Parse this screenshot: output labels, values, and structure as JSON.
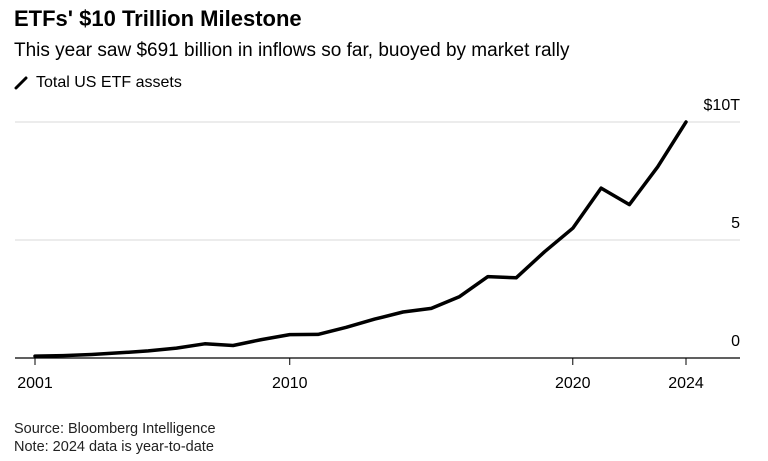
{
  "chart_data": {
    "type": "line",
    "title": "ETFs' $10 Trillion Milestone",
    "subtitle": "This year saw $691 billion in inflows so far, buoyed by market rally",
    "legend": [
      {
        "name": "Total US ETF assets",
        "color": "#000000"
      }
    ],
    "xlabel": "",
    "ylabel": "",
    "x": [
      2001,
      2002,
      2003,
      2004,
      2005,
      2006,
      2007,
      2008,
      2009,
      2010,
      2011,
      2012,
      2013,
      2014,
      2015,
      2016,
      2017,
      2018,
      2019,
      2020,
      2021,
      2022,
      2023,
      2024
    ],
    "series": [
      {
        "name": "Total US ETF assets",
        "values": [
          0.08,
          0.1,
          0.15,
          0.22,
          0.3,
          0.42,
          0.6,
          0.53,
          0.78,
          0.99,
          1.0,
          1.3,
          1.65,
          1.95,
          2.1,
          2.6,
          3.45,
          3.4,
          4.5,
          5.5,
          7.2,
          6.5,
          8.1,
          10.0
        ]
      }
    ],
    "xlim": [
      2001,
      2024
    ],
    "ylim": [
      0,
      10
    ],
    "x_ticks": [
      {
        "value": 2001,
        "label": "2001"
      },
      {
        "value": 2010,
        "label": "2010"
      },
      {
        "value": 2020,
        "label": "2020"
      },
      {
        "value": 2024,
        "label": "2024"
      }
    ],
    "y_ticks": [
      {
        "value": 0,
        "label": "0"
      },
      {
        "value": 5,
        "label": "5"
      },
      {
        "value": 10,
        "label": "$10T"
      }
    ],
    "grid": true,
    "legend_position": "top-left"
  },
  "footer": {
    "source": "Source: Bloomberg Intelligence",
    "note": "Note: 2024 data is year-to-date"
  }
}
